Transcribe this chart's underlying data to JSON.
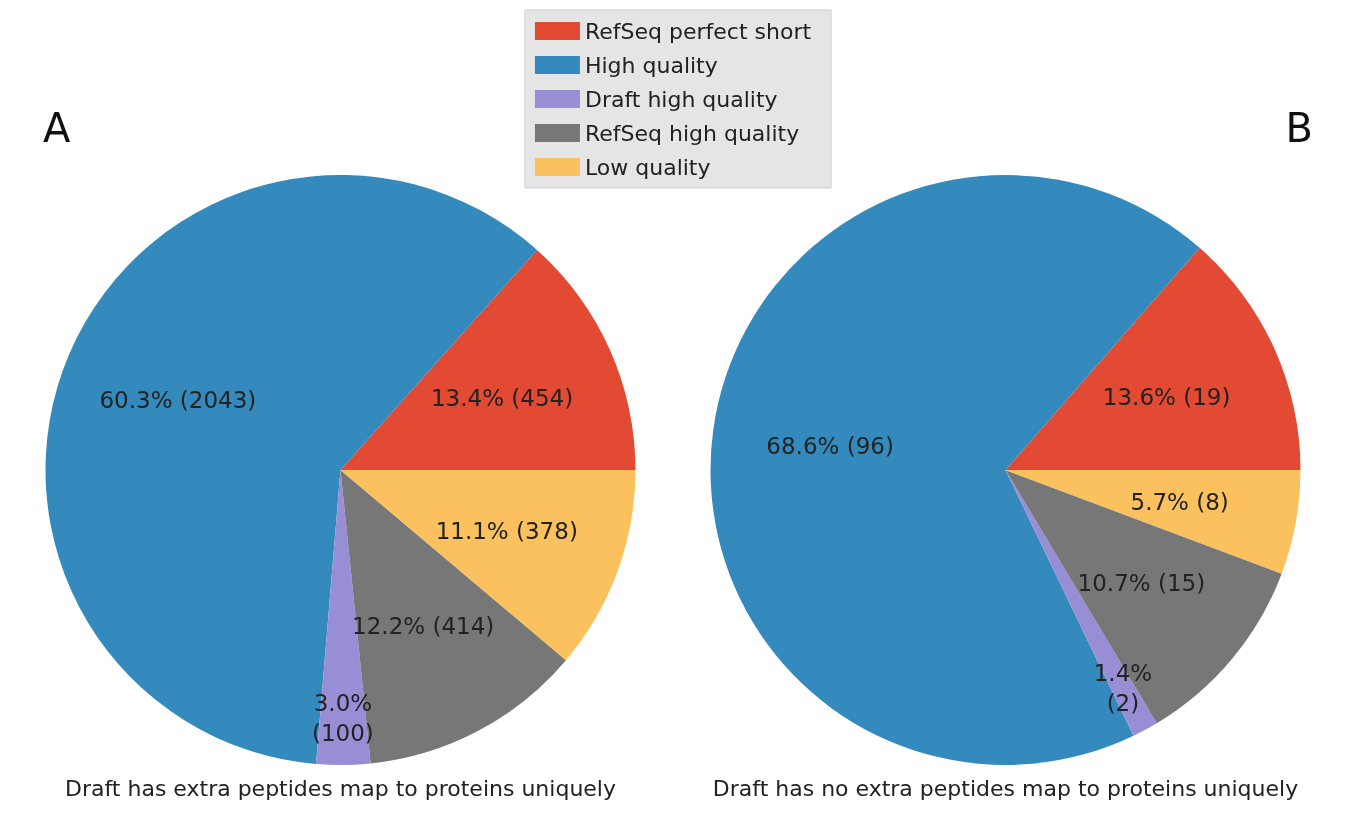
{
  "chart_data": {
    "type": "pie",
    "categories": [
      "RefSeq perfect short",
      "High quality",
      "Draft high quality",
      "RefSeq high quality",
      "Low quality"
    ],
    "colors": [
      "#e24a33",
      "#348abd",
      "#988ed5",
      "#777777",
      "#fbc15e"
    ],
    "legend": "top",
    "annotations": [
      "Draft has extra peptides map to proteins uniquely",
      "Draft has no extra peptides map to proteins uniquely"
    ],
    "series": [
      {
        "name": "A",
        "values": [
          454,
          2043,
          100,
          414,
          378
        ],
        "value_labels": [
          "13.4% (454)",
          "60.3% (2043)",
          "3.0%\n(100)",
          "12.2% (414)",
          "11.1% (378)"
        ]
      },
      {
        "name": "B",
        "values": [
          19,
          96,
          2,
          15,
          8
        ],
        "value_labels": [
          "13.6% (19)",
          "68.6% (96)",
          "1.4%\n(2)",
          "10.7% (15)",
          "5.7% (8)"
        ]
      }
    ]
  }
}
